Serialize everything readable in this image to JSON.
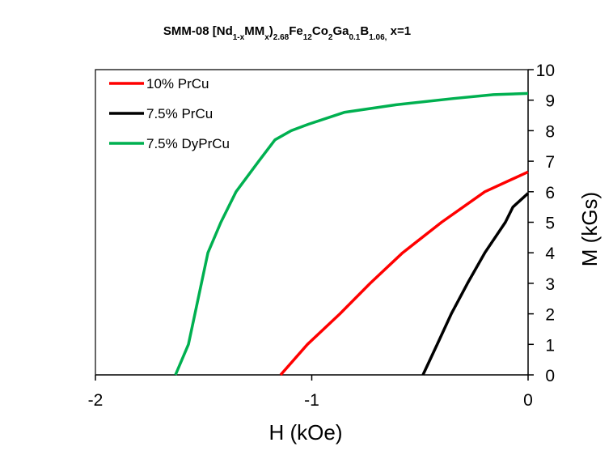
{
  "chart_data": {
    "type": "line",
    "title": [
      "SMM-08 [Nd",
      "1-x",
      "MM",
      "x",
      ")",
      "2.68",
      "Fe",
      "12",
      "Co",
      "2",
      "Ga",
      "0.1",
      "B",
      "1.06,",
      " x=1"
    ],
    "x_label": "H (kOe)",
    "y_label": "M (kGs)",
    "xlim": [
      -2,
      0
    ],
    "xticks": [
      -2,
      -1,
      0
    ],
    "ylim": [
      0,
      10
    ],
    "yticks": [
      0,
      1,
      2,
      3,
      4,
      5,
      6,
      7,
      8,
      9,
      10
    ],
    "legend": "upper left",
    "series": [
      {
        "name": "10% PrCu",
        "color": "#ff0000",
        "x": [
          -1.144,
          -1.02,
          -0.87,
          -0.73,
          -0.58,
          -0.4,
          -0.2,
          0
        ],
        "values": [
          0,
          1,
          2,
          3,
          4,
          5,
          6,
          6.65
        ]
      },
      {
        "name": "7.5% PrCu",
        "color": "#000000",
        "x": [
          -0.486,
          -0.42,
          -0.355,
          -0.28,
          -0.2,
          -0.105,
          -0.07,
          0
        ],
        "values": [
          0,
          1,
          2,
          3,
          4,
          5,
          5.5,
          5.95
        ]
      },
      {
        "name": "7.5% DyPrCu",
        "color": "#00b050",
        "x": [
          -1.63,
          -1.57,
          -1.54,
          -1.51,
          -1.48,
          -1.42,
          -1.35,
          -1.245,
          -1.17,
          -1.095,
          -1.02,
          -0.85,
          -0.61,
          -0.35,
          -0.16,
          0
        ],
        "values": [
          0,
          1,
          2,
          3,
          4,
          5,
          6,
          7,
          7.7,
          8,
          8.2,
          8.6,
          8.85,
          9.05,
          9.18,
          9.22
        ]
      }
    ]
  }
}
